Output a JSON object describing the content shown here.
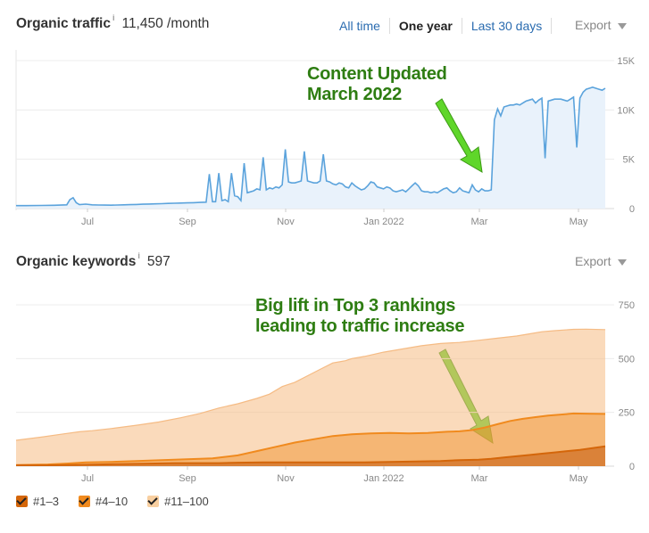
{
  "traffic": {
    "title": "Organic traffic",
    "info": "i",
    "value": "11,450 /month",
    "ranges": [
      "All time",
      "One year",
      "Last 30 days"
    ],
    "active_range": "One year",
    "export_label": "Export",
    "annotation": [
      "Content Updated",
      "March 2022"
    ]
  },
  "keywords": {
    "title": "Organic keywords",
    "info": "i",
    "value": "597",
    "export_label": "Export",
    "annotation": [
      "Big lift in Top 3 rankings",
      "leading to traffic increase"
    ]
  },
  "legend": [
    {
      "label": "#1–3",
      "color": "#d4660a"
    },
    {
      "label": "#4–10",
      "color": "#f08a1e"
    },
    {
      "label": "#11–100",
      "color": "#f8cfa0"
    }
  ],
  "colors": {
    "traffic_line": "#5ba3dc",
    "traffic_fill": "#e9f2fb",
    "kw_top3": "#d4660a",
    "kw_4_10": "#f08a1e",
    "kw_11_100": "#f5bb84",
    "annotation_text": "#2e7d12",
    "arrow": "#5fd62a"
  },
  "chart_data": [
    {
      "type": "area",
      "xticks": [
        "Jul",
        "Sep",
        "Nov",
        "Jan 2022",
        "Mar",
        "May"
      ],
      "yticks": [
        "15K",
        "10K",
        "5K",
        "0"
      ],
      "ylim": [
        0,
        15000
      ],
      "series": [
        {
          "points": [
            [
              0,
              300
            ],
            [
              3,
              300
            ],
            [
              8,
              320
            ],
            [
              12,
              330
            ],
            [
              14,
              350
            ],
            [
              16,
              380
            ],
            [
              17,
              900
            ],
            [
              18,
              1100
            ],
            [
              19,
              600
            ],
            [
              20,
              400
            ],
            [
              22,
              450
            ],
            [
              24,
              380
            ],
            [
              26,
              360
            ],
            [
              28,
              350
            ],
            [
              30,
              340
            ],
            [
              32,
              360
            ],
            [
              34,
              380
            ],
            [
              36,
              400
            ],
            [
              38,
              420
            ],
            [
              40,
              440
            ],
            [
              42,
              460
            ],
            [
              44,
              480
            ],
            [
              46,
              500
            ],
            [
              48,
              520
            ],
            [
              50,
              540
            ],
            [
              52,
              560
            ],
            [
              54,
              580
            ],
            [
              56,
              600
            ],
            [
              58,
              620
            ],
            [
              60,
              650
            ],
            [
              61,
              3500
            ],
            [
              62,
              700
            ],
            [
              63,
              700
            ],
            [
              64,
              3600
            ],
            [
              65,
              800
            ],
            [
              66,
              900
            ],
            [
              67,
              700
            ],
            [
              68,
              3600
            ],
            [
              69,
              1300
            ],
            [
              70,
              1200
            ],
            [
              71,
              800
            ],
            [
              72,
              4600
            ],
            [
              73,
              1600
            ],
            [
              74,
              1700
            ],
            [
              75,
              1800
            ],
            [
              76,
              2000
            ],
            [
              77,
              1900
            ],
            [
              78,
              5200
            ],
            [
              79,
              1900
            ],
            [
              80,
              2100
            ],
            [
              81,
              2000
            ],
            [
              82,
              2200
            ],
            [
              83,
              2100
            ],
            [
              84,
              2400
            ],
            [
              85,
              6000
            ],
            [
              86,
              2700
            ],
            [
              87,
              2600
            ],
            [
              88,
              2600
            ],
            [
              89,
              2700
            ],
            [
              90,
              2800
            ],
            [
              91,
              5800
            ],
            [
              92,
              2800
            ],
            [
              93,
              2700
            ],
            [
              94,
              2600
            ],
            [
              95,
              2600
            ],
            [
              96,
              2800
            ],
            [
              97,
              5500
            ],
            [
              98,
              2800
            ],
            [
              99,
              2700
            ],
            [
              100,
              2500
            ],
            [
              101,
              2400
            ],
            [
              102,
              2600
            ],
            [
              103,
              2500
            ],
            [
              104,
              2200
            ],
            [
              105,
              2100
            ],
            [
              106,
              2600
            ],
            [
              107,
              2300
            ],
            [
              108,
              2100
            ],
            [
              109,
              1900
            ],
            [
              110,
              2000
            ],
            [
              111,
              2300
            ],
            [
              112,
              2700
            ],
            [
              113,
              2600
            ],
            [
              114,
              2200
            ],
            [
              115,
              2100
            ],
            [
              116,
              2000
            ],
            [
              117,
              2200
            ],
            [
              118,
              2100
            ],
            [
              119,
              1800
            ],
            [
              120,
              1700
            ],
            [
              121,
              1800
            ],
            [
              122,
              1900
            ],
            [
              123,
              1700
            ],
            [
              124,
              2000
            ],
            [
              125,
              2300
            ],
            [
              126,
              2600
            ],
            [
              127,
              2300
            ],
            [
              128,
              1800
            ],
            [
              129,
              1700
            ],
            [
              130,
              1700
            ],
            [
              131,
              1600
            ],
            [
              132,
              1700
            ],
            [
              133,
              1600
            ],
            [
              134,
              1800
            ],
            [
              135,
              2000
            ],
            [
              136,
              2100
            ],
            [
              137,
              1800
            ],
            [
              138,
              1600
            ],
            [
              139,
              1700
            ],
            [
              140,
              2100
            ],
            [
              141,
              1800
            ],
            [
              142,
              1700
            ],
            [
              143,
              1600
            ],
            [
              144,
              2400
            ],
            [
              145,
              1900
            ],
            [
              146,
              1700
            ],
            [
              147,
              2000
            ],
            [
              148,
              1800
            ],
            [
              149,
              1800
            ],
            [
              150,
              1900
            ],
            [
              151,
              9000
            ],
            [
              152,
              10100
            ],
            [
              153,
              9400
            ],
            [
              154,
              10300
            ],
            [
              155,
              10400
            ],
            [
              156,
              10500
            ],
            [
              157,
              10500
            ],
            [
              158,
              10600
            ],
            [
              159,
              10500
            ],
            [
              160,
              10700
            ],
            [
              161,
              10900
            ],
            [
              162,
              11000
            ],
            [
              163,
              11100
            ],
            [
              164,
              10700
            ],
            [
              165,
              11000
            ],
            [
              166,
              11200
            ],
            [
              167,
              5100
            ],
            [
              168,
              10900
            ],
            [
              169,
              11000
            ],
            [
              170,
              11100
            ],
            [
              171,
              11100
            ],
            [
              172,
              11100
            ],
            [
              173,
              11000
            ],
            [
              174,
              10900
            ],
            [
              175,
              11100
            ],
            [
              176,
              11300
            ],
            [
              177,
              6200
            ],
            [
              178,
              11200
            ],
            [
              179,
              11800
            ],
            [
              180,
              12100
            ],
            [
              181,
              12200
            ],
            [
              182,
              12300
            ],
            [
              183,
              12200
            ],
            [
              184,
              12100
            ],
            [
              185,
              12000
            ],
            [
              186,
              12200
            ]
          ]
        }
      ]
    },
    {
      "type": "area",
      "xticks": [
        "Jul",
        "Sep",
        "Nov",
        "Jan 2022",
        "Mar",
        "May"
      ],
      "yticks": [
        "750",
        "500",
        "250",
        "0"
      ],
      "ylim": [
        0,
        750
      ],
      "categories": [
        "#1–3",
        "#4–10",
        "#11–100"
      ],
      "series": [
        {
          "name": "#11–100",
          "points": [
            [
              0,
              120
            ],
            [
              8,
              135
            ],
            [
              15,
              150
            ],
            [
              20,
              160
            ],
            [
              24,
              165
            ],
            [
              30,
              175
            ],
            [
              38,
              190
            ],
            [
              45,
              205
            ],
            [
              52,
              225
            ],
            [
              58,
              245
            ],
            [
              64,
              270
            ],
            [
              70,
              290
            ],
            [
              76,
              315
            ],
            [
              80,
              335
            ],
            [
              84,
              370
            ],
            [
              88,
              390
            ],
            [
              92,
              420
            ],
            [
              96,
              450
            ],
            [
              100,
              480
            ],
            [
              104,
              490
            ],
            [
              106,
              500
            ],
            [
              110,
              510
            ],
            [
              116,
              530
            ],
            [
              122,
              545
            ],
            [
              128,
              560
            ],
            [
              134,
              570
            ],
            [
              140,
              575
            ],
            [
              146,
              585
            ],
            [
              152,
              595
            ],
            [
              158,
              605
            ],
            [
              162,
              615
            ],
            [
              166,
              625
            ],
            [
              170,
              630
            ],
            [
              176,
              636
            ],
            [
              180,
              637
            ],
            [
              186,
              635
            ]
          ]
        },
        {
          "name": "#4–10",
          "points": [
            [
              0,
              5
            ],
            [
              10,
              8
            ],
            [
              16,
              12
            ],
            [
              22,
              18
            ],
            [
              30,
              20
            ],
            [
              38,
              24
            ],
            [
              46,
              28
            ],
            [
              54,
              32
            ],
            [
              62,
              36
            ],
            [
              70,
              50
            ],
            [
              76,
              70
            ],
            [
              82,
              90
            ],
            [
              88,
              110
            ],
            [
              94,
              125
            ],
            [
              100,
              140
            ],
            [
              106,
              148
            ],
            [
              112,
              152
            ],
            [
              118,
              154
            ],
            [
              124,
              152
            ],
            [
              130,
              154
            ],
            [
              136,
              160
            ],
            [
              140,
              162
            ],
            [
              144,
              168
            ],
            [
              148,
              180
            ],
            [
              152,
              195
            ],
            [
              156,
              210
            ],
            [
              160,
              220
            ],
            [
              164,
              228
            ],
            [
              168,
              235
            ],
            [
              172,
              240
            ],
            [
              176,
              245
            ],
            [
              180,
              244
            ],
            [
              186,
              243
            ]
          ]
        },
        {
          "name": "#1–3",
          "points": [
            [
              0,
              4
            ],
            [
              10,
              4
            ],
            [
              18,
              6
            ],
            [
              26,
              8
            ],
            [
              34,
              10
            ],
            [
              42,
              12
            ],
            [
              50,
              14
            ],
            [
              58,
              14
            ],
            [
              64,
              14
            ],
            [
              70,
              16
            ],
            [
              78,
              18
            ],
            [
              86,
              18
            ],
            [
              94,
              18
            ],
            [
              102,
              18
            ],
            [
              110,
              18
            ],
            [
              118,
              20
            ],
            [
              126,
              22
            ],
            [
              134,
              24
            ],
            [
              140,
              28
            ],
            [
              146,
              30
            ],
            [
              150,
              34
            ],
            [
              154,
              40
            ],
            [
              158,
              46
            ],
            [
              162,
              52
            ],
            [
              166,
              58
            ],
            [
              170,
              64
            ],
            [
              174,
              70
            ],
            [
              178,
              76
            ],
            [
              182,
              84
            ],
            [
              186,
              92
            ]
          ]
        }
      ]
    }
  ]
}
